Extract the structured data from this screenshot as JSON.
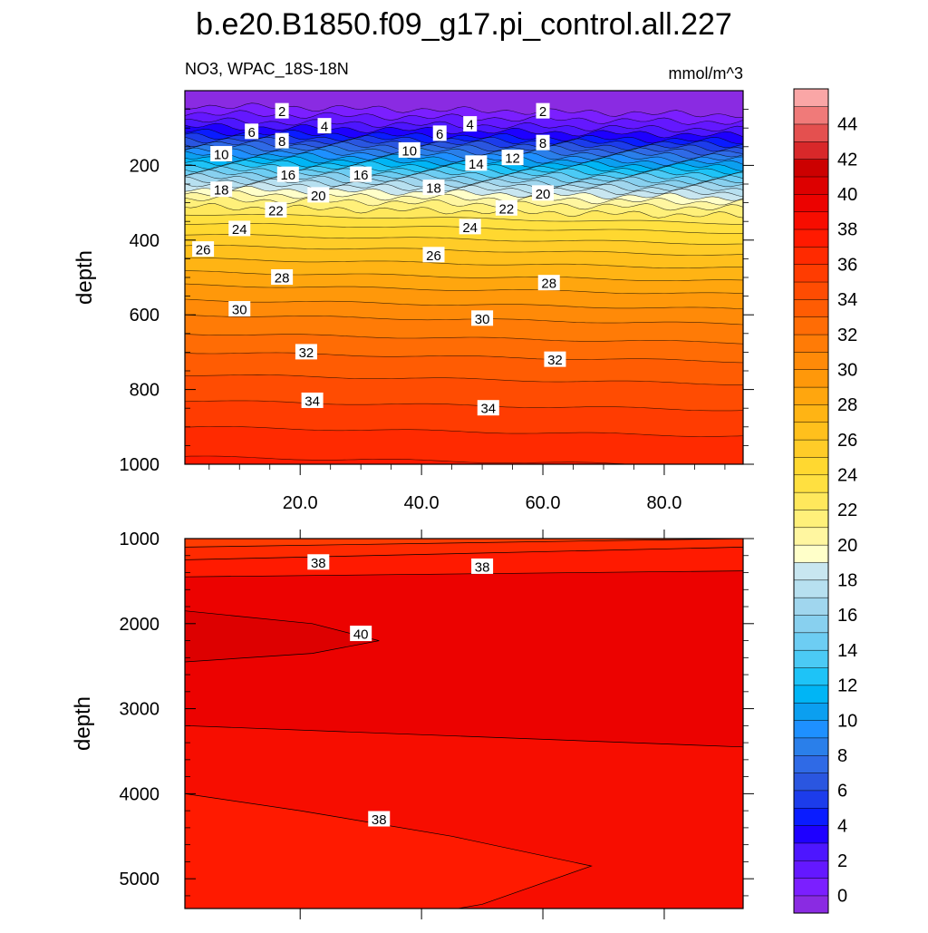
{
  "title": "b.e20.B1850.f09_g17.pi_control.all.227",
  "subtitle_left": "NO3, WPAC_18S-18N",
  "subtitle_right": "mmol/m^3",
  "chart_data": [
    {
      "type": "contour",
      "name": "upper-panel",
      "xlabel": "",
      "ylabel": "depth",
      "xlim": [
        1,
        93
      ],
      "ylim": [
        1000,
        0
      ],
      "xticks": [
        20,
        40,
        60,
        80
      ],
      "xtick_labels": [
        "20.0",
        "40.0",
        "60.0",
        "80.0"
      ],
      "yticks": [
        200,
        400,
        600,
        800,
        1000
      ],
      "ytick_labels": [
        "200",
        "400",
        "600",
        "800",
        "1000"
      ],
      "contour_interval": 1,
      "contour_depths_at_left": [
        [
          0,
          40
        ],
        [
          1,
          60
        ],
        [
          2,
          80
        ],
        [
          3,
          95
        ],
        [
          4,
          110
        ],
        [
          5,
          120
        ],
        [
          6,
          130
        ],
        [
          7,
          140
        ],
        [
          8,
          150
        ],
        [
          9,
          160
        ],
        [
          10,
          170
        ],
        [
          11,
          180
        ],
        [
          12,
          190
        ],
        [
          13,
          200
        ],
        [
          14,
          210
        ],
        [
          15,
          220
        ],
        [
          16,
          230
        ],
        [
          17,
          240
        ],
        [
          18,
          250
        ],
        [
          19,
          262
        ],
        [
          20,
          275
        ],
        [
          21,
          290
        ],
        [
          22,
          310
        ],
        [
          23,
          330
        ],
        [
          24,
          355
        ],
        [
          25,
          385
        ],
        [
          26,
          415
        ],
        [
          27,
          450
        ],
        [
          28,
          485
        ],
        [
          29,
          520
        ],
        [
          30,
          560
        ],
        [
          31,
          600
        ],
        [
          32,
          650
        ],
        [
          33,
          700
        ],
        [
          34,
          760
        ],
        [
          35,
          830
        ],
        [
          36,
          900
        ],
        [
          37,
          980
        ]
      ],
      "contour_tilt_depth": 25,
      "labels": [
        {
          "text": "2",
          "x": 17,
          "y": 55
        },
        {
          "text": "6",
          "x": 12,
          "y": 110
        },
        {
          "text": "8",
          "x": 17,
          "y": 135
        },
        {
          "text": "4",
          "x": 24,
          "y": 95
        },
        {
          "text": "10",
          "x": 7,
          "y": 170
        },
        {
          "text": "16",
          "x": 18,
          "y": 225
        },
        {
          "text": "18",
          "x": 7,
          "y": 265
        },
        {
          "text": "20",
          "x": 23,
          "y": 280
        },
        {
          "text": "22",
          "x": 16,
          "y": 320
        },
        {
          "text": "24",
          "x": 10,
          "y": 370
        },
        {
          "text": "26",
          "x": 4,
          "y": 425
        },
        {
          "text": "28",
          "x": 17,
          "y": 500
        },
        {
          "text": "30",
          "x": 10,
          "y": 585
        },
        {
          "text": "32",
          "x": 21,
          "y": 700
        },
        {
          "text": "34",
          "x": 22,
          "y": 830
        },
        {
          "text": "10",
          "x": 38,
          "y": 160
        },
        {
          "text": "6",
          "x": 43,
          "y": 115
        },
        {
          "text": "4",
          "x": 48,
          "y": 90
        },
        {
          "text": "16",
          "x": 30,
          "y": 225
        },
        {
          "text": "18",
          "x": 42,
          "y": 260
        },
        {
          "text": "14",
          "x": 49,
          "y": 195
        },
        {
          "text": "12",
          "x": 55,
          "y": 180
        },
        {
          "text": "2",
          "x": 60,
          "y": 55
        },
        {
          "text": "8",
          "x": 60,
          "y": 140
        },
        {
          "text": "20",
          "x": 60,
          "y": 275
        },
        {
          "text": "22",
          "x": 54,
          "y": 315
        },
        {
          "text": "24",
          "x": 48,
          "y": 365
        },
        {
          "text": "26",
          "x": 42,
          "y": 440
        },
        {
          "text": "28",
          "x": 61,
          "y": 515
        },
        {
          "text": "30",
          "x": 50,
          "y": 610
        },
        {
          "text": "32",
          "x": 62,
          "y": 720
        },
        {
          "text": "34",
          "x": 51,
          "y": 850
        }
      ]
    },
    {
      "type": "contour",
      "name": "lower-panel",
      "xlabel": "",
      "ylabel": "depth",
      "xlim": [
        1,
        93
      ],
      "ylim": [
        5350,
        1000
      ],
      "yticks": [
        1000,
        2000,
        3000,
        4000,
        5000
      ],
      "ytick_labels": [
        "1000",
        "2000",
        "3000",
        "4000",
        "5000"
      ],
      "contour_interval": 1,
      "contour_lines": [
        {
          "level": 36,
          "points": [
            [
              1,
              1100
            ],
            [
              93,
              1000
            ]
          ]
        },
        {
          "level": 37,
          "points": [
            [
              1,
              1250
            ],
            [
              93,
              1100
            ]
          ]
        },
        {
          "level": 38,
          "points": [
            [
              1,
              1450
            ],
            [
              93,
              1380
            ]
          ]
        },
        {
          "level": 39,
          "points": [
            [
              1,
              3200
            ],
            [
              93,
              3450
            ]
          ]
        },
        {
          "level": 38,
          "points": [
            [
              1,
              4000
            ],
            [
              20,
              4200
            ],
            [
              45,
              4500
            ],
            [
              68,
              4850
            ],
            [
              50,
              5300
            ],
            [
              46,
              5350
            ]
          ]
        }
      ],
      "regions": [
        {
          "level": 40,
          "points": [
            [
              1,
              1850
            ],
            [
              22,
              2000
            ],
            [
              33,
              2200
            ],
            [
              22,
              2350
            ],
            [
              1,
              2450
            ]
          ]
        }
      ],
      "labels": [
        {
          "text": "38",
          "x": 23,
          "y": 1280
        },
        {
          "text": "38",
          "x": 50,
          "y": 1330
        },
        {
          "text": "40",
          "x": 30,
          "y": 2120
        },
        {
          "text": "38",
          "x": 33,
          "y": 4300
        }
      ]
    }
  ],
  "colorbar": {
    "labels": [
      "0",
      "2",
      "4",
      "6",
      "8",
      "10",
      "12",
      "14",
      "16",
      "18",
      "20",
      "22",
      "24",
      "26",
      "28",
      "30",
      "32",
      "34",
      "36",
      "38",
      "40",
      "42",
      "44"
    ],
    "colors": [
      "#8a2be2",
      "#7b1fff",
      "#6418ff",
      "#4d16ff",
      "#1e00ff",
      "#0a1cff",
      "#1c3ceb",
      "#2a56e0",
      "#2f6ae6",
      "#2a7fea",
      "#1e90ff",
      "#0b9ff0",
      "#00b5f5",
      "#1ec3f7",
      "#4bcaf5",
      "#6dcdf3",
      "#88d0ef",
      "#a0d6ee",
      "#b7e0f0",
      "#c8e6f0",
      "#ffffc9",
      "#fff6a0",
      "#fff07a",
      "#ffe85c",
      "#ffe040",
      "#ffd830",
      "#ffcc28",
      "#ffc01c",
      "#ffb414",
      "#ffa60e",
      "#ff980a",
      "#ff8a08",
      "#ff7b06",
      "#ff6c05",
      "#ff5c03",
      "#ff4c02",
      "#ff3c01",
      "#ff2a00",
      "#ff1a00",
      "#f70d00",
      "#ec0200",
      "#dd0000",
      "#cc0000",
      "#d8282a",
      "#e4504f",
      "#f07a79",
      "#faa6a6"
    ]
  }
}
